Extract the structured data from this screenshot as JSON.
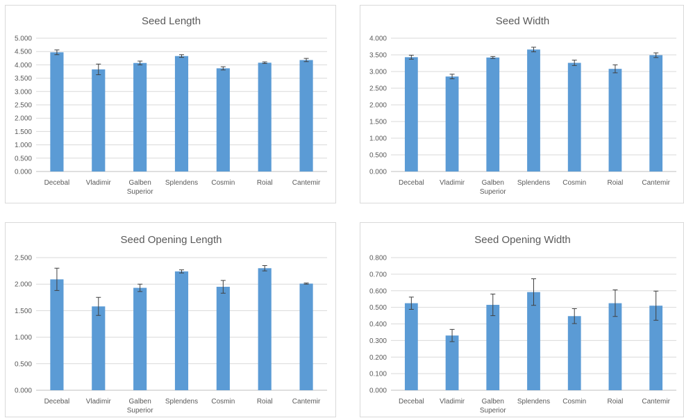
{
  "colors": {
    "bar": "#5b9bd5",
    "grid": "#d9d9d9",
    "text": "#595959",
    "error_bar": "#404040"
  },
  "chart_data": [
    {
      "type": "bar",
      "title": "Seed Length",
      "categories": [
        "Decebal",
        "Vladimir",
        "Galben Superior",
        "Splendens",
        "Cosmin",
        "Roial",
        "Cantemir"
      ],
      "category_lines": [
        [
          "Decebal"
        ],
        [
          "Vladimir"
        ],
        [
          "Galben",
          "Superior"
        ],
        [
          "Splendens"
        ],
        [
          "Cosmin"
        ],
        [
          "Roial"
        ],
        [
          "Cantemir"
        ]
      ],
      "values": [
        4.47,
        3.83,
        4.07,
        4.33,
        3.87,
        4.08,
        4.18
      ],
      "errors": [
        0.09,
        0.2,
        0.07,
        0.05,
        0.06,
        0.03,
        0.06
      ],
      "ylim": [
        0,
        5
      ],
      "yticks": [
        0,
        0.5,
        1,
        1.5,
        2,
        2.5,
        3,
        3.5,
        4,
        4.5,
        5
      ],
      "ytick_labels": [
        "0.000",
        "0.500",
        "1.000",
        "1.500",
        "2.000",
        "2.500",
        "3.000",
        "3.500",
        "4.000",
        "4.500",
        "5.000"
      ],
      "grid": true,
      "legend": "none"
    },
    {
      "type": "bar",
      "title": "Seed Width",
      "categories": [
        "Decebal",
        "Vladimir",
        "Galben Superior",
        "Splendens",
        "Cosmin",
        "Roial",
        "Cantemir"
      ],
      "category_lines": [
        [
          "Decebal"
        ],
        [
          "Vladimir"
        ],
        [
          "Galben",
          "Superior"
        ],
        [
          "Splendens"
        ],
        [
          "Cosmin"
        ],
        [
          "Roial"
        ],
        [
          "Cantemir"
        ]
      ],
      "values": [
        3.43,
        2.85,
        3.42,
        3.66,
        3.26,
        3.08,
        3.49
      ],
      "errors": [
        0.06,
        0.07,
        0.03,
        0.07,
        0.08,
        0.12,
        0.07
      ],
      "ylim": [
        0,
        4
      ],
      "yticks": [
        0,
        0.5,
        1,
        1.5,
        2,
        2.5,
        3,
        3.5,
        4
      ],
      "ytick_labels": [
        "0.000",
        "0.500",
        "1.000",
        "1.500",
        "2.000",
        "2.500",
        "3.000",
        "3.500",
        "4.000"
      ],
      "grid": true,
      "legend": "none"
    },
    {
      "type": "bar",
      "title": "Seed Opening Length",
      "categories": [
        "Decebal",
        "Vladimir",
        "Galben Superior",
        "Splendens",
        "Cosmin",
        "Roial",
        "Cantemir"
      ],
      "category_lines": [
        [
          "Decebal"
        ],
        [
          "Vladimir"
        ],
        [
          "Galben",
          "Superior"
        ],
        [
          "Splendens"
        ],
        [
          "Cosmin"
        ],
        [
          "Roial"
        ],
        [
          "Cantemir"
        ]
      ],
      "values": [
        2.09,
        1.58,
        1.93,
        2.24,
        1.95,
        2.3,
        2.01
      ],
      "errors": [
        0.21,
        0.17,
        0.07,
        0.03,
        0.12,
        0.05,
        0.01
      ],
      "ylim": [
        0,
        2.5
      ],
      "yticks": [
        0,
        0.5,
        1,
        1.5,
        2,
        2.5
      ],
      "ytick_labels": [
        "0.000",
        "0.500",
        "1.000",
        "1.500",
        "2.000",
        "2.500"
      ],
      "grid": true,
      "legend": "none"
    },
    {
      "type": "bar",
      "title": "Seed Opening Width",
      "categories": [
        "Decebal",
        "Vladimir",
        "Galben Superior",
        "Splendens",
        "Cosmin",
        "Roial",
        "Cantemir"
      ],
      "category_lines": [
        [
          "Decebal"
        ],
        [
          "Vladimir"
        ],
        [
          "Galben",
          "Superior"
        ],
        [
          "Splendens"
        ],
        [
          "Cosmin"
        ],
        [
          "Roial"
        ],
        [
          "Cantemir"
        ]
      ],
      "values": [
        0.525,
        0.33,
        0.515,
        0.592,
        0.447,
        0.525,
        0.51
      ],
      "errors": [
        0.037,
        0.037,
        0.065,
        0.08,
        0.045,
        0.08,
        0.088
      ],
      "ylim": [
        0,
        0.8
      ],
      "yticks": [
        0,
        0.1,
        0.2,
        0.3,
        0.4,
        0.5,
        0.6,
        0.7,
        0.8
      ],
      "ytick_labels": [
        "0.000",
        "0.100",
        "0.200",
        "0.300",
        "0.400",
        "0.500",
        "0.600",
        "0.700",
        "0.800"
      ],
      "grid": true,
      "legend": "none"
    }
  ]
}
